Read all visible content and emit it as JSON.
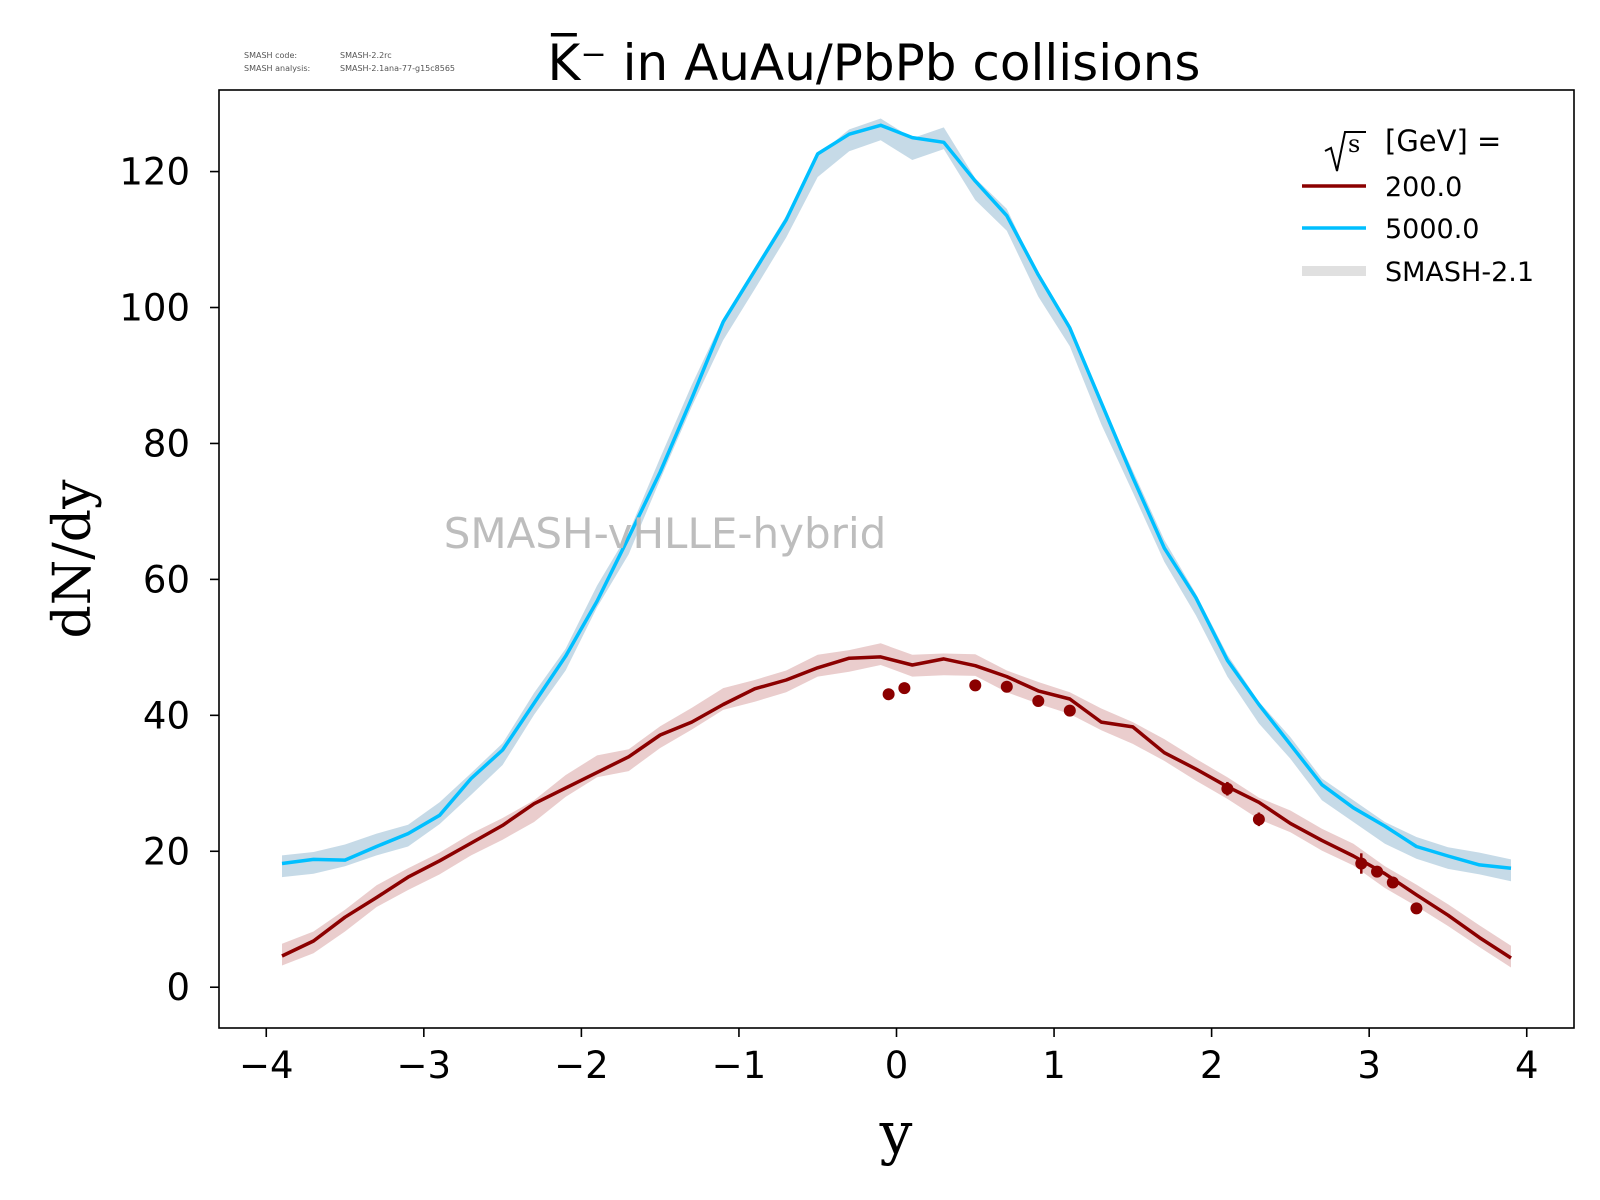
{
  "meta": {
    "code_label": "SMASH code:",
    "code_value": "SMASH-2.2rc",
    "analysis_label": "SMASH analysis:",
    "analysis_value": "SMASH-2.1ana-77-g15c8565"
  },
  "watermark": "SMASH-vHLLE-hybrid",
  "chart_data": {
    "type": "line",
    "title": "K̅⁻ in AuAu/PbPb collisions",
    "xlabel": "y",
    "ylabel": "dN/dy",
    "xlim": [
      -4.3,
      4.3
    ],
    "ylim": [
      -6,
      132
    ],
    "xticks": [
      -4,
      -3,
      -2,
      -1,
      0,
      1,
      2,
      3,
      4
    ],
    "xtick_labels": [
      "−4",
      "−3",
      "−2",
      "−1",
      "0",
      "1",
      "2",
      "3",
      "4"
    ],
    "yticks": [
      0,
      20,
      40,
      60,
      80,
      100,
      120
    ],
    "ytick_labels": [
      "0",
      "20",
      "40",
      "60",
      "80",
      "100",
      "120"
    ],
    "grid": false,
    "legend": {
      "placement": "top-right",
      "title": "[GeV] =",
      "title_sqrt": "s",
      "entries": [
        "200.0",
        "5000.0",
        "SMASH-2.1"
      ]
    },
    "x": [
      -3.9,
      -3.7,
      -3.5,
      -3.3,
      -3.1,
      -2.9,
      -2.7,
      -2.5,
      -2.3,
      -2.1,
      -1.9,
      -1.7,
      -1.5,
      -1.3,
      -1.1,
      -0.9,
      -0.7,
      -0.5,
      -0.3,
      -0.1,
      0.1,
      0.3,
      0.5,
      0.7,
      0.9,
      1.1,
      1.3,
      1.5,
      1.7,
      1.9,
      2.1,
      2.3,
      2.5,
      2.7,
      2.9,
      3.1,
      3.3,
      3.5,
      3.7,
      3.9
    ],
    "series": [
      {
        "name": "200.0",
        "color": "#8b0000",
        "values": [
          4.6,
          6.8,
          10.3,
          13.2,
          16.2,
          18.6,
          21.2,
          23.8,
          27.0,
          29.3,
          31.6,
          33.9,
          37.1,
          39.0,
          41.6,
          43.9,
          45.2,
          47.0,
          48.4,
          48.6,
          47.4,
          48.3,
          47.3,
          45.7,
          43.6,
          42.4,
          39.0,
          38.3,
          34.5,
          32.1,
          29.5,
          27.2,
          24.1,
          21.6,
          19.3,
          16.7,
          13.6,
          10.6,
          7.3,
          4.3
        ]
      },
      {
        "name": "5000.0",
        "color": "#00bfff",
        "values": [
          18.2,
          18.8,
          18.7,
          20.7,
          22.6,
          25.3,
          30.7,
          34.9,
          41.8,
          48.7,
          56.8,
          66.2,
          75.8,
          86.6,
          97.9,
          105.4,
          112.9,
          122.6,
          125.5,
          126.8,
          125.0,
          124.3,
          118.6,
          113.5,
          104.8,
          97.0,
          86.0,
          75.0,
          64.6,
          57.3,
          48.1,
          41.6,
          35.7,
          29.8,
          26.4,
          23.7,
          20.7,
          19.3,
          18.0,
          17.5
        ]
      }
    ],
    "bands": [
      {
        "name": "SMASH-2.1",
        "color": "#e8c8c8",
        "values": [
          4.8,
          6.6,
          9.8,
          13.4,
          15.9,
          18.2,
          21.0,
          23.3,
          25.9,
          29.6,
          32.5,
          33.4,
          36.8,
          39.5,
          42.4,
          43.6,
          45.0,
          47.3,
          48.0,
          49.0,
          47.3,
          47.5,
          47.4,
          45.0,
          43.3,
          41.8,
          39.4,
          37.4,
          34.9,
          32.0,
          29.3,
          26.3,
          24.4,
          21.7,
          19.5,
          16.2,
          13.5,
          10.6,
          7.5,
          4.5
        ]
      },
      {
        "name": "SMASH-2.1",
        "color": "#c0d6e4",
        "values": [
          17.8,
          18.3,
          19.4,
          21.0,
          22.3,
          25.6,
          29.9,
          34.3,
          41.7,
          48.2,
          57.5,
          65.3,
          76.3,
          87.0,
          96.8,
          104.3,
          111.9,
          120.8,
          124.6,
          126.2,
          123.3,
          124.9,
          117.4,
          112.9,
          103.2,
          95.9,
          84.4,
          74.4,
          64.2,
          56.3,
          47.3,
          40.4,
          35.2,
          29.1,
          25.9,
          22.7,
          20.5,
          19.0,
          18.2,
          17.2
        ]
      }
    ],
    "data_points": {
      "color": "#8b0000",
      "points": [
        {
          "x": -0.05,
          "y": 43.1,
          "err": 0.5
        },
        {
          "x": 0.05,
          "y": 44.0,
          "err": 0.5
        },
        {
          "x": 0.5,
          "y": 44.4,
          "err": 0.5
        },
        {
          "x": 0.7,
          "y": 44.2,
          "err": 0.5
        },
        {
          "x": 0.9,
          "y": 42.1,
          "err": 0.5
        },
        {
          "x": 1.1,
          "y": 40.7,
          "err": 0.5
        },
        {
          "x": 2.1,
          "y": 29.2,
          "err": 1.0
        },
        {
          "x": 2.3,
          "y": 24.7,
          "err": 1.0
        },
        {
          "x": 2.95,
          "y": 18.2,
          "err": 1.5
        },
        {
          "x": 3.05,
          "y": 17.0,
          "err": 0.6
        },
        {
          "x": 3.15,
          "y": 15.4,
          "err": 0.6
        },
        {
          "x": 3.3,
          "y": 11.6,
          "err": 0.5
        }
      ]
    }
  }
}
